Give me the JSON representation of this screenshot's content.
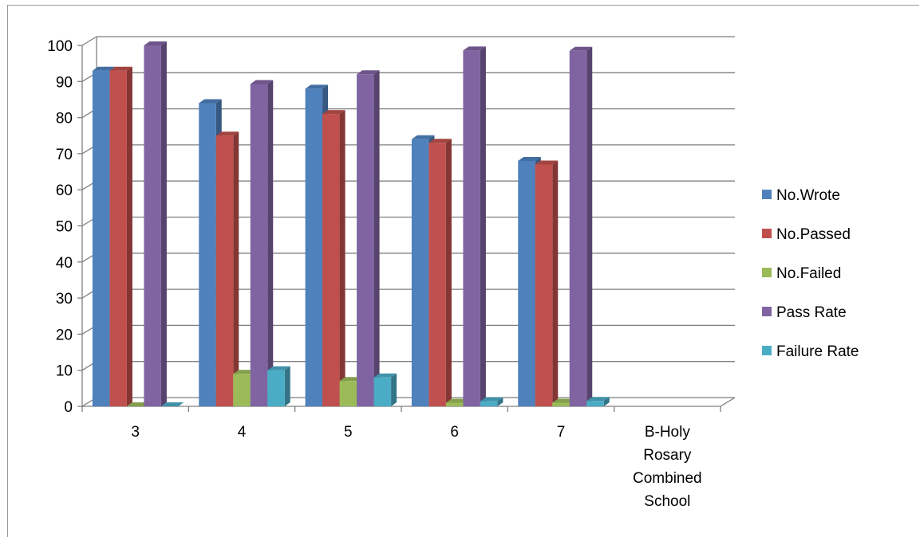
{
  "chart_data": {
    "type": "bar",
    "title": "",
    "xlabel": "",
    "ylabel": "",
    "ylim": [
      0,
      100
    ],
    "yticks": [
      0,
      10,
      20,
      30,
      40,
      50,
      60,
      70,
      80,
      90,
      100
    ],
    "grid": true,
    "legend_position": "right",
    "categories": [
      "3",
      "4",
      "5",
      "6",
      "7",
      "B-Holy Rosary Combined School"
    ],
    "category_label_lines": [
      [
        "3"
      ],
      [
        "4"
      ],
      [
        "5"
      ],
      [
        "6"
      ],
      [
        "7"
      ],
      [
        "B-Holy",
        "Rosary",
        "Combined",
        "School"
      ]
    ],
    "series": [
      {
        "name": "No.Wrote",
        "color": "#4F81BD",
        "values": [
          93,
          84,
          88,
          74,
          68,
          null
        ]
      },
      {
        "name": "No.Passed",
        "color": "#C0504D",
        "values": [
          93,
          75,
          81,
          73,
          67,
          null
        ]
      },
      {
        "name": "No.Failed",
        "color": "#9BBB59",
        "values": [
          0,
          9,
          7,
          1,
          1,
          null
        ]
      },
      {
        "name": "Pass Rate",
        "color": "#8064A2",
        "values": [
          100,
          89.3,
          92,
          98.6,
          98.5,
          null
        ]
      },
      {
        "name": "Failure Rate",
        "color": "#4BACC6",
        "values": [
          0,
          10,
          8,
          1.4,
          1.5,
          null
        ]
      }
    ]
  }
}
